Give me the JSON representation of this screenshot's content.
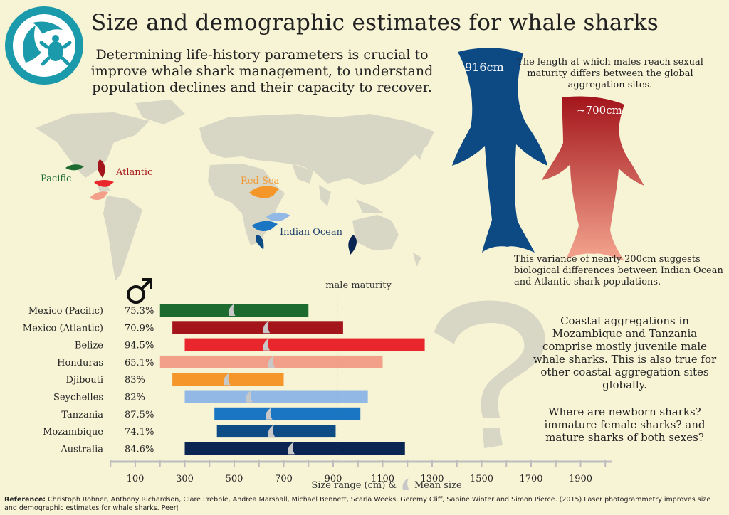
{
  "title": "Size and demographic estimates for whale sharks",
  "intro": "Determining life-history parameters is crucial to improve whale shark management, to understand population declines and their capacity to recover.",
  "map": {
    "labels": {
      "pacific": "Pacific",
      "atlantic": "Atlantic",
      "red_sea": "Red Sea",
      "indian_ocean": "Indian Ocean"
    }
  },
  "maturity_callout": {
    "male_length_global": "916cm",
    "male_length_atlantic": "~700cm",
    "note_top": "The length at which males reach sexual maturity differs between the global aggregation sites.",
    "note_bottom": "This variance of nearly 200cm suggests biological differences between Indian Ocean and Atlantic shark populations."
  },
  "side_text": {
    "coastal": "Coastal aggregations in Mozambique and Tanzania comprise mostly juvenile male whale sharks. This is also true for other coastal aggregation sites globally.",
    "questions": "Where are newborn sharks? immature female sharks? and mature sharks of both sexes?"
  },
  "colors": {
    "Mexico (Pacific)": "#1e6b30",
    "Mexico (Atlantic)": "#a3151b",
    "Belize": "#e8262b",
    "Honduras": "#f2a08a",
    "Djibouti": "#f5962a",
    "Seychelles": "#92b8e6",
    "Tanzania": "#1a75c2",
    "Mozambique": "#0e4c86",
    "Australia": "#0b2553"
  },
  "chart_data": {
    "type": "bar",
    "orientation": "horizontal",
    "categories": [
      "Mexico (Pacific)",
      "Mexico (Atlantic)",
      "Belize",
      "Honduras",
      "Djibouti",
      "Seychelles",
      "Tanzania",
      "Mozambique",
      "Australia"
    ],
    "percent_labels": [
      "75.3%",
      "70.9%",
      "94.5%",
      "65.1%",
      "83%",
      "82%",
      "87.5%",
      "74.1%",
      "84.6%"
    ],
    "size_min": [
      200,
      250,
      300,
      200,
      250,
      300,
      420,
      430,
      300
    ],
    "size_max": [
      800,
      940,
      1270,
      1100,
      700,
      1040,
      1010,
      910,
      1190
    ],
    "mean_size": [
      490,
      630,
      630,
      650,
      470,
      560,
      640,
      650,
      730
    ],
    "xticks": [
      100,
      300,
      500,
      700,
      900,
      1100,
      1300,
      1500,
      1700,
      1900
    ],
    "xlim": [
      0,
      2100
    ],
    "reference_line": 916,
    "reference_label": "male maturity",
    "xlabel": "Size range (cm) &",
    "mean_label": "Mean size",
    "sex_symbol": "♂"
  },
  "reference": {
    "label": "Reference:",
    "text": "Christoph Rohner, Anthony Richardson, Clare Prebble, Andrea Marshall, Michael Bennett, Scarla Weeks, Geremy Cliff, Sabine Winter and Simon Pierce. (2015) Laser photogrammetry improves size and demographic estimates for whale sharks. PeerJ"
  }
}
